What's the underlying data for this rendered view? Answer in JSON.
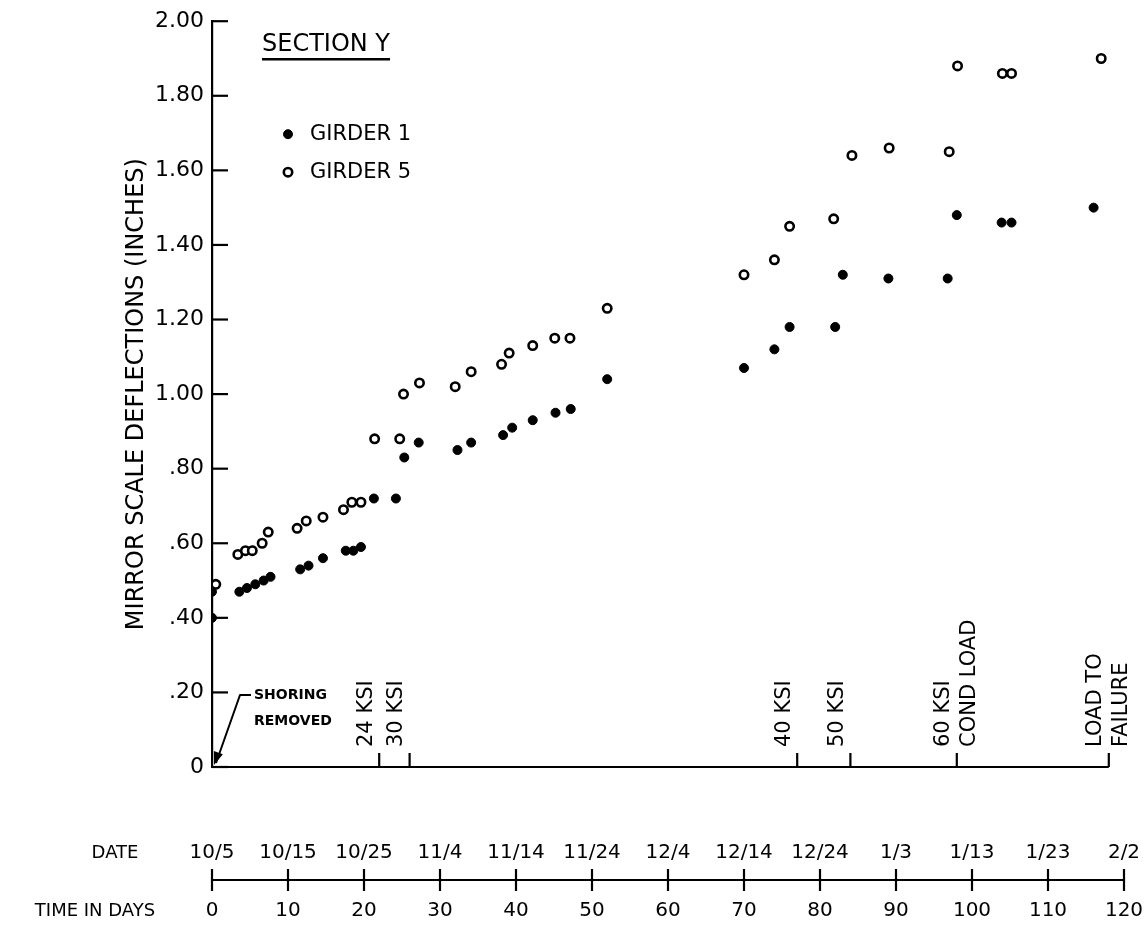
{
  "chart_data": {
    "type": "scatter",
    "title": "SECTION Y",
    "ylabel": "MIRROR SCALE DEFLECTIONS (INCHES)",
    "xlabel": "TIME IN DAYS",
    "series": [
      {
        "name": "GIRDER 1",
        "color": "#000000",
        "x": [
          0,
          0,
          3.6,
          4.6,
          5.7,
          6.8,
          7.7,
          11.6,
          12.7,
          14.6,
          17.6,
          18.6,
          19.6,
          21.3,
          24.2,
          25.3,
          27.2,
          32.3,
          34.1,
          38.3,
          39.5,
          42.2,
          45.2,
          47.2,
          52,
          70,
          74,
          76,
          82,
          83,
          89,
          96.8,
          98,
          103.9,
          105.2,
          116
        ],
        "values": [
          0.4,
          0.47,
          0.47,
          0.48,
          0.49,
          0.5,
          0.51,
          0.53,
          0.54,
          0.56,
          0.58,
          0.58,
          0.59,
          0.72,
          0.72,
          0.83,
          0.87,
          0.85,
          0.87,
          0.89,
          0.91,
          0.93,
          0.95,
          0.96,
          1.04,
          1.07,
          1.12,
          1.18,
          1.18,
          1.32,
          1.31,
          1.31,
          1.48,
          1.46,
          1.46,
          1.5
        ]
      },
      {
        "name": "GIRDER 5",
        "color": "#000000",
        "x": [
          0.5,
          3.4,
          4.4,
          5.3,
          6.6,
          7.4,
          11.2,
          12.4,
          14.6,
          17.3,
          18.4,
          19.6,
          21.4,
          24.7,
          25.2,
          27.3,
          32,
          34.1,
          38.1,
          39.1,
          42.2,
          45.1,
          47.1,
          52,
          70,
          74,
          76,
          81.8,
          84.2,
          89.1,
          97,
          98.1,
          104,
          105.2,
          117
        ],
        "values": [
          0.49,
          0.57,
          0.58,
          0.58,
          0.6,
          0.63,
          0.64,
          0.66,
          0.67,
          0.69,
          0.71,
          0.71,
          0.88,
          0.88,
          1,
          1.03,
          1.02,
          1.06,
          1.08,
          1.11,
          1.13,
          1.15,
          1.15,
          1.23,
          1.32,
          1.36,
          1.45,
          1.47,
          1.64,
          1.66,
          1.65,
          1.88,
          1.86,
          1.86,
          1.9
        ]
      }
    ],
    "marker": "circle",
    "legend": "top left",
    "xlim": [
      0,
      120
    ],
    "xticks": [
      0,
      10,
      20,
      30,
      40,
      50,
      60,
      70,
      80,
      90,
      100,
      110,
      120
    ],
    "ylim": [
      0,
      2
    ],
    "yticks": [
      0,
      {
        "value": 0.2,
        "label": ".20"
      },
      {
        "value": 0.4,
        "label": ".40"
      },
      {
        "value": 0.6,
        "label": ".60"
      },
      {
        "value": 0.8,
        "label": ".80"
      },
      {
        "value": 1,
        "label": "1.00"
      },
      {
        "value": 1.2,
        "label": "1.20"
      },
      {
        "value": 1.4,
        "label": "1.40"
      },
      {
        "value": 1.6,
        "label": "1.60"
      },
      {
        "value": 1.8,
        "label": "1.80"
      },
      {
        "value": 2,
        "label": "2.00"
      }
    ],
    "ref_lines": [
      {
        "axis": "x",
        "value": 22,
        "label": "24 KSI"
      },
      {
        "axis": "x",
        "value": 26,
        "label": "30 KSI"
      },
      {
        "axis": "x",
        "value": 77,
        "label": "40 KSI"
      },
      {
        "axis": "x",
        "value": 84,
        "label": "50 KSI"
      },
      {
        "axis": "x",
        "value": 98,
        "label": "60 KSI COND LOAD"
      },
      {
        "axis": "x",
        "value": 118,
        "label": "LOAD TO FAILURE"
      }
    ],
    "annotations": [
      "SHORING REMOVED",
      "DATE",
      "10/5",
      "10/15",
      "10/25",
      "11/4",
      "11/14",
      "11/24",
      "12/4",
      "12/14",
      "12/24",
      "1/3",
      "1/13",
      "1/23",
      "2/2"
    ]
  }
}
